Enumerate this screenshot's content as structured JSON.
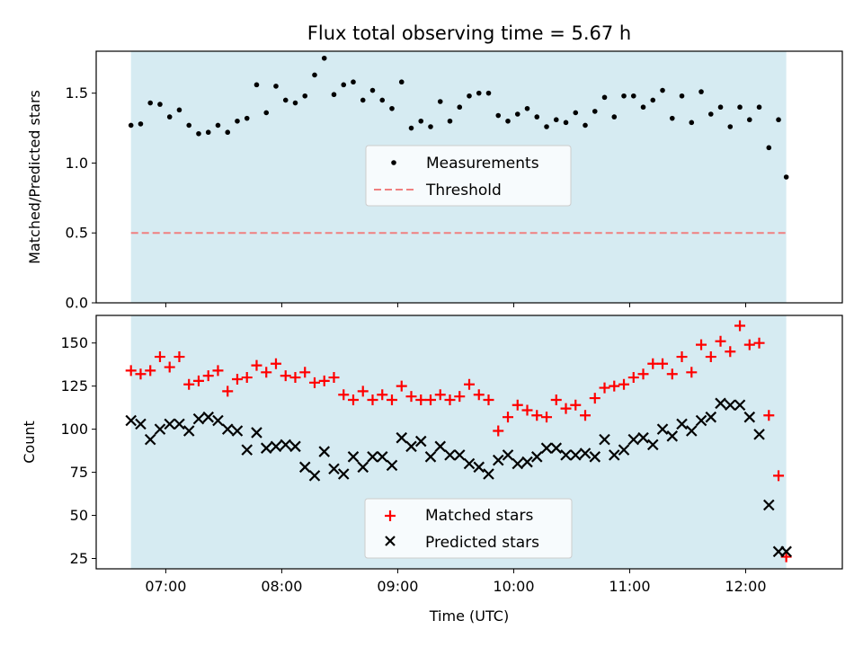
{
  "chart_data": [
    {
      "type": "scatter",
      "title": "Flux total observing time = 5.67 h",
      "xlabel": "",
      "ylabel": "Matched/Predicted stars",
      "xlim": [
        "06:24",
        "12:50"
      ],
      "ylim": [
        0,
        1.8
      ],
      "yticks": [
        "0.0",
        "0.5",
        "1.0",
        "1.5"
      ],
      "shaded_span": [
        "06:42",
        "12:21"
      ],
      "threshold": 0.5,
      "grid": false,
      "legend_position": "center",
      "legend": [
        "Measurements",
        "Threshold"
      ],
      "colors": {
        "measurements": "#000000",
        "threshold": "#f08080",
        "shade": "#add8e6"
      },
      "series": [
        {
          "name": "Measurements",
          "x": [
            "06:42",
            "06:47",
            "06:52",
            "06:57",
            "07:02",
            "07:07",
            "07:12",
            "07:17",
            "07:22",
            "07:27",
            "07:32",
            "07:37",
            "07:42",
            "07:47",
            "07:52",
            "07:57",
            "08:02",
            "08:07",
            "08:12",
            "08:17",
            "08:22",
            "08:27",
            "08:32",
            "08:37",
            "08:42",
            "08:47",
            "08:52",
            "08:57",
            "09:02",
            "09:07",
            "09:12",
            "09:17",
            "09:22",
            "09:27",
            "09:32",
            "09:37",
            "09:42",
            "09:47",
            "09:52",
            "09:57",
            "10:02",
            "10:07",
            "10:12",
            "10:17",
            "10:22",
            "10:27",
            "10:32",
            "10:37",
            "10:42",
            "10:47",
            "10:52",
            "10:57",
            "11:02",
            "11:07",
            "11:12",
            "11:17",
            "11:22",
            "11:27",
            "11:32",
            "11:37",
            "11:42",
            "11:47",
            "11:52",
            "11:57",
            "12:02",
            "12:07",
            "12:12",
            "12:17",
            "12:21"
          ],
          "y": [
            1.27,
            1.28,
            1.43,
            1.42,
            1.33,
            1.38,
            1.27,
            1.21,
            1.22,
            1.27,
            1.22,
            1.3,
            1.32,
            1.56,
            1.36,
            1.55,
            1.45,
            1.43,
            1.48,
            1.63,
            1.75,
            1.49,
            1.56,
            1.58,
            1.45,
            1.52,
            1.45,
            1.39,
            1.58,
            1.25,
            1.3,
            1.26,
            1.44,
            1.3,
            1.4,
            1.48,
            1.5,
            1.5,
            1.34,
            1.3,
            1.35,
            1.39,
            1.33,
            1.26,
            1.31,
            1.29,
            1.36,
            1.27,
            1.37,
            1.47,
            1.33,
            1.48,
            1.48,
            1.4,
            1.45,
            1.52,
            1.32,
            1.48,
            1.29,
            1.51,
            1.35,
            1.4,
            1.26,
            1.4,
            1.31,
            1.4,
            1.11,
            1.31,
            0.9
          ]
        }
      ]
    },
    {
      "type": "scatter",
      "title": "",
      "xlabel": "Time (UTC)",
      "ylabel": "Count",
      "xlim": [
        "06:24",
        "12:50"
      ],
      "ylim": [
        19,
        166
      ],
      "xticks": [
        "07:00",
        "08:00",
        "09:00",
        "10:00",
        "11:00",
        "12:00"
      ],
      "yticks": [
        "25",
        "50",
        "75",
        "100",
        "125",
        "150"
      ],
      "shaded_span": [
        "06:42",
        "12:21"
      ],
      "grid": false,
      "legend_position": "lower center",
      "legend": [
        "Matched stars",
        "Predicted stars"
      ],
      "colors": {
        "matched": "#ff0000",
        "predicted": "#000000",
        "shade": "#add8e6"
      },
      "series": [
        {
          "name": "Matched stars",
          "x": [
            "06:42",
            "06:47",
            "06:52",
            "06:57",
            "07:02",
            "07:07",
            "07:12",
            "07:17",
            "07:22",
            "07:27",
            "07:32",
            "07:37",
            "07:42",
            "07:47",
            "07:52",
            "07:57",
            "08:02",
            "08:07",
            "08:12",
            "08:17",
            "08:22",
            "08:27",
            "08:32",
            "08:37",
            "08:42",
            "08:47",
            "08:52",
            "08:57",
            "09:02",
            "09:07",
            "09:12",
            "09:17",
            "09:22",
            "09:27",
            "09:32",
            "09:37",
            "09:42",
            "09:47",
            "09:52",
            "09:57",
            "10:02",
            "10:07",
            "10:12",
            "10:17",
            "10:22",
            "10:27",
            "10:32",
            "10:37",
            "10:42",
            "10:47",
            "10:52",
            "10:57",
            "11:02",
            "11:07",
            "11:12",
            "11:17",
            "11:22",
            "11:27",
            "11:32",
            "11:37",
            "11:42",
            "11:47",
            "11:52",
            "11:57",
            "12:02",
            "12:07",
            "12:12",
            "12:17",
            "12:21"
          ],
          "y": [
            134,
            132,
            134,
            142,
            136,
            142,
            126,
            128,
            131,
            134,
            122,
            129,
            130,
            137,
            133,
            138,
            131,
            130,
            133,
            127,
            128,
            130,
            120,
            117,
            122,
            117,
            120,
            117,
            125,
            119,
            117,
            117,
            120,
            117,
            119,
            126,
            120,
            117,
            99,
            107,
            114,
            111,
            108,
            107,
            117,
            112,
            114,
            108,
            118,
            124,
            125,
            126,
            130,
            132,
            138,
            138,
            132,
            142,
            133,
            149,
            142,
            151,
            145,
            160,
            149,
            150,
            108,
            73,
            26
          ]
        },
        {
          "name": "Predicted stars",
          "x": [
            "06:42",
            "06:47",
            "06:52",
            "06:57",
            "07:02",
            "07:07",
            "07:12",
            "07:17",
            "07:22",
            "07:27",
            "07:32",
            "07:37",
            "07:42",
            "07:47",
            "07:52",
            "07:57",
            "08:02",
            "08:07",
            "08:12",
            "08:17",
            "08:22",
            "08:27",
            "08:32",
            "08:37",
            "08:42",
            "08:47",
            "08:52",
            "08:57",
            "09:02",
            "09:07",
            "09:12",
            "09:17",
            "09:22",
            "09:27",
            "09:32",
            "09:37",
            "09:42",
            "09:47",
            "09:52",
            "09:57",
            "10:02",
            "10:07",
            "10:12",
            "10:17",
            "10:22",
            "10:27",
            "10:32",
            "10:37",
            "10:42",
            "10:47",
            "10:52",
            "10:57",
            "11:02",
            "11:07",
            "11:12",
            "11:17",
            "11:22",
            "11:27",
            "11:32",
            "11:37",
            "11:42",
            "11:47",
            "11:52",
            "11:57",
            "12:02",
            "12:07",
            "12:12",
            "12:17",
            "12:21"
          ],
          "y": [
            105,
            103,
            94,
            100,
            103,
            103,
            99,
            106,
            107,
            105,
            100,
            99,
            88,
            98,
            89,
            90,
            91,
            90,
            78,
            73,
            87,
            77,
            74,
            84,
            78,
            84,
            84,
            79,
            95,
            90,
            93,
            84,
            90,
            85,
            85,
            80,
            78,
            74,
            82,
            85,
            80,
            81,
            84,
            89,
            89,
            85,
            85,
            86,
            84,
            94,
            85,
            88,
            94,
            95,
            91,
            100,
            96,
            103,
            99,
            105,
            107,
            115,
            114,
            114,
            107,
            97,
            56,
            29,
            29
          ]
        }
      ]
    }
  ]
}
